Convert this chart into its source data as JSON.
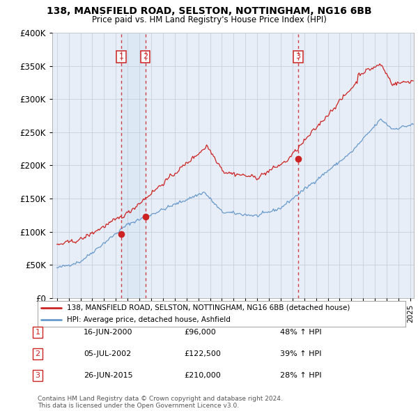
{
  "title": "138, MANSFIELD ROAD, SELSTON, NOTTINGHAM, NG16 6BB",
  "subtitle": "Price paid vs. HM Land Registry's House Price Index (HPI)",
  "legend_label_red": "138, MANSFIELD ROAD, SELSTON, NOTTINGHAM, NG16 6BB (detached house)",
  "legend_label_blue": "HPI: Average price, detached house, Ashfield",
  "footer": "Contains HM Land Registry data © Crown copyright and database right 2024.\nThis data is licensed under the Open Government Licence v3.0.",
  "transactions": [
    {
      "num": 1,
      "date": "16-JUN-2000",
      "price": "£96,000",
      "hpi": "48% ↑ HPI",
      "year": 2000.46
    },
    {
      "num": 2,
      "date": "05-JUL-2002",
      "price": "£122,500",
      "hpi": "39% ↑ HPI",
      "year": 2002.51
    },
    {
      "num": 3,
      "date": "26-JUN-2015",
      "price": "£210,000",
      "hpi": "28% ↑ HPI",
      "year": 2015.48
    }
  ],
  "transaction_values": [
    96000,
    122500,
    210000
  ],
  "ylim": [
    0,
    400000
  ],
  "yticks": [
    0,
    50000,
    100000,
    150000,
    200000,
    250000,
    300000,
    350000,
    400000
  ],
  "xlim_start": 1994.6,
  "xlim_end": 2025.3,
  "background_color": "#ffffff",
  "plot_bg_color": "#e8eef8",
  "grid_color": "#c8d0dc",
  "red_color": "#cc2222",
  "blue_color": "#6699cc",
  "shade_color": "#dde8f5"
}
